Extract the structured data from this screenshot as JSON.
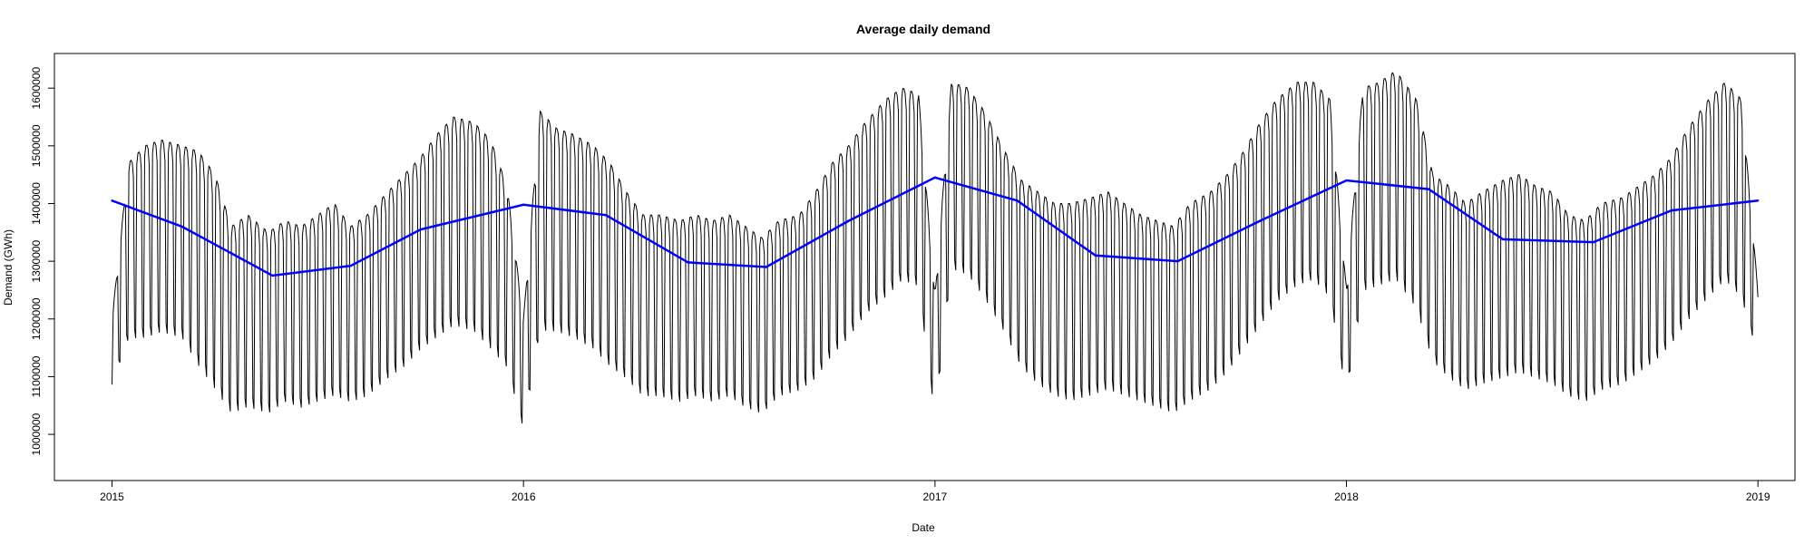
{
  "chart_data": {
    "type": "line",
    "title": "Average daily demand",
    "xlabel": "Date",
    "ylabel": "Demand (GWh)",
    "xlim": [
      2014.86,
      2019.09
    ],
    "ylim": [
      920000,
      1660000
    ],
    "x_ticks": [
      2015,
      2016,
      2017,
      2018,
      2019
    ],
    "x_tick_labels": [
      "2015",
      "2016",
      "2017",
      "2018",
      "2019"
    ],
    "y_ticks": [
      1000000,
      1100000,
      1200000,
      1300000,
      1400000,
      1500000,
      1600000
    ],
    "y_tick_labels": [
      "1000000",
      "1100000",
      "1200000",
      "1300000",
      "1400000",
      "1500000",
      "1600000"
    ],
    "grid": false,
    "series": [
      {
        "role": "daily demand",
        "color": "#000000",
        "weekly_envelope": {
          "x": [
            2015.0,
            2015.04,
            2015.08,
            2015.12,
            2015.17,
            2015.21,
            2015.25,
            2015.29,
            2015.33,
            2015.38,
            2015.42,
            2015.46,
            2015.5,
            2015.54,
            2015.58,
            2015.62,
            2015.67,
            2015.71,
            2015.75,
            2015.79,
            2015.83,
            2015.88,
            2015.92,
            2015.96,
            2016.0,
            2016.04,
            2016.08,
            2016.12,
            2016.17,
            2016.21,
            2016.25,
            2016.29,
            2016.33,
            2016.38,
            2016.42,
            2016.46,
            2016.5,
            2016.54,
            2016.58,
            2016.62,
            2016.67,
            2016.71,
            2016.75,
            2016.79,
            2016.83,
            2016.88,
            2016.92,
            2016.96,
            2017.0,
            2017.04,
            2017.08,
            2017.12,
            2017.17,
            2017.21,
            2017.25,
            2017.29,
            2017.33,
            2017.38,
            2017.42,
            2017.46,
            2017.5,
            2017.54,
            2017.58,
            2017.62,
            2017.67,
            2017.71,
            2017.75,
            2017.79,
            2017.83,
            2017.88,
            2017.92,
            2017.96,
            2018.0,
            2018.04,
            2018.08,
            2018.12,
            2018.17,
            2018.21,
            2018.25,
            2018.29,
            2018.33,
            2018.38,
            2018.42,
            2018.46,
            2018.5,
            2018.54,
            2018.58,
            2018.62,
            2018.67,
            2018.71,
            2018.75,
            2018.79,
            2018.83,
            2018.88,
            2018.92,
            2018.96,
            2019.0
          ],
          "weekday": [
            1200000,
            1470000,
            1500000,
            1510000,
            1500000,
            1490000,
            1450000,
            1360000,
            1380000,
            1350000,
            1370000,
            1360000,
            1380000,
            1400000,
            1360000,
            1380000,
            1420000,
            1450000,
            1480000,
            1520000,
            1550000,
            1540000,
            1510000,
            1430000,
            1200000,
            1560000,
            1530000,
            1520000,
            1500000,
            1470000,
            1420000,
            1380000,
            1380000,
            1370000,
            1380000,
            1370000,
            1380000,
            1360000,
            1340000,
            1370000,
            1380000,
            1420000,
            1470000,
            1500000,
            1540000,
            1580000,
            1600000,
            1590000,
            1240000,
            1610000,
            1600000,
            1560000,
            1490000,
            1440000,
            1420000,
            1400000,
            1400000,
            1410000,
            1420000,
            1400000,
            1380000,
            1370000,
            1360000,
            1400000,
            1420000,
            1450000,
            1490000,
            1540000,
            1580000,
            1610000,
            1610000,
            1580000,
            1250000,
            1600000,
            1610000,
            1630000,
            1580000,
            1450000,
            1430000,
            1400000,
            1420000,
            1440000,
            1450000,
            1430000,
            1420000,
            1380000,
            1370000,
            1400000,
            1410000,
            1430000,
            1450000,
            1480000,
            1530000,
            1580000,
            1610000,
            1580000,
            1250000
          ],
          "weekend": [
            1080000,
            1150000,
            1150000,
            1160000,
            1150000,
            1100000,
            1060000,
            1020000,
            1030000,
            1020000,
            1040000,
            1030000,
            1040000,
            1050000,
            1040000,
            1050000,
            1080000,
            1100000,
            1130000,
            1150000,
            1170000,
            1160000,
            1130000,
            1100000,
            1000000,
            1160000,
            1160000,
            1150000,
            1130000,
            1100000,
            1080000,
            1050000,
            1050000,
            1040000,
            1050000,
            1040000,
            1050000,
            1030000,
            1020000,
            1050000,
            1060000,
            1080000,
            1120000,
            1150000,
            1190000,
            1220000,
            1250000,
            1240000,
            1020000,
            1270000,
            1260000,
            1220000,
            1160000,
            1100000,
            1070000,
            1050000,
            1040000,
            1050000,
            1060000,
            1050000,
            1040000,
            1030000,
            1020000,
            1040000,
            1060000,
            1090000,
            1130000,
            1170000,
            1210000,
            1240000,
            1250000,
            1220000,
            1060000,
            1230000,
            1240000,
            1250000,
            1200000,
            1110000,
            1080000,
            1060000,
            1070000,
            1080000,
            1090000,
            1080000,
            1070000,
            1050000,
            1040000,
            1060000,
            1070000,
            1090000,
            1110000,
            1140000,
            1180000,
            1220000,
            1250000,
            1220000,
            1130000
          ]
        }
      },
      {
        "role": "trend",
        "color": "#0000ff",
        "x": [
          2015.0,
          2015.17,
          2015.39,
          2015.58,
          2015.75,
          2016.0,
          2016.2,
          2016.4,
          2016.59,
          2016.79,
          2017.0,
          2017.2,
          2017.39,
          2017.59,
          2017.79,
          2018.0,
          2018.2,
          2018.38,
          2018.6,
          2018.79,
          2019.0
        ],
        "y": [
          1405000,
          1360000,
          1275000,
          1292000,
          1355000,
          1398000,
          1380000,
          1298000,
          1290000,
          1370000,
          1445000,
          1405000,
          1310000,
          1300000,
          1370000,
          1440000,
          1425000,
          1338000,
          1333000,
          1388000,
          1405000
        ]
      }
    ]
  }
}
